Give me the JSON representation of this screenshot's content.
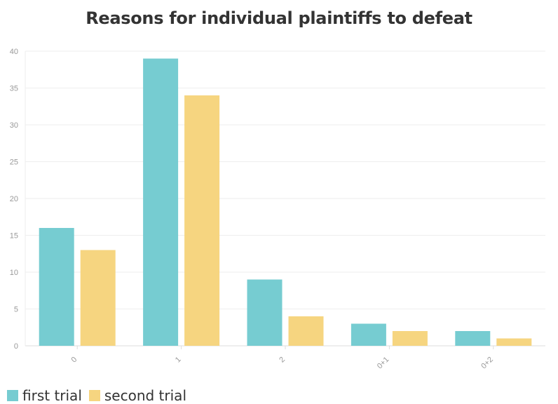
{
  "chart_data": {
    "type": "bar",
    "title": "Reasons for individual plaintiffs to defeat",
    "categories": [
      "0",
      "1",
      "2",
      "0+1",
      "0+2"
    ],
    "series": [
      {
        "name": "first trial",
        "values": [
          16,
          39,
          9,
          3,
          2
        ],
        "color": "#76CCD1"
      },
      {
        "name": "second trial",
        "values": [
          13,
          34,
          4,
          2,
          1
        ],
        "color": "#F6D580"
      }
    ],
    "ylim": [
      0,
      40
    ],
    "yticks": [
      0,
      5,
      10,
      15,
      20,
      25,
      30,
      35,
      40
    ],
    "grid": true,
    "legend_position": "bottom-left"
  }
}
